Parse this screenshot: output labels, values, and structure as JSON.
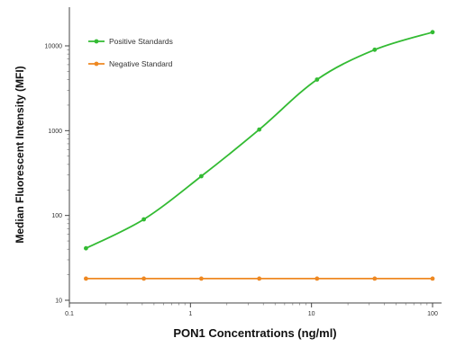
{
  "chart_data": {
    "type": "line",
    "title": "",
    "xlabel": "PON1 Concentrations (ng/ml)",
    "ylabel": "Median Fluorescent Intensity  (MFI)",
    "x_scale": "log",
    "y_scale": "log",
    "xlim": [
      0.1,
      100
    ],
    "ylim": [
      10,
      10000
    ],
    "x_ticks": [
      0.1,
      1,
      10,
      100
    ],
    "x_tick_labels": [
      "0.1",
      "1",
      "10",
      "100"
    ],
    "y_ticks": [
      10,
      100,
      1000,
      10000
    ],
    "y_tick_labels": [
      "10",
      "100",
      "1000",
      "10000"
    ],
    "grid": false,
    "legend_position": "top-left",
    "series": [
      {
        "name": "Positive Standards",
        "color": "#33bb33",
        "marker": "circle",
        "fit": "smooth-sigmoid",
        "x": [
          0.137,
          0.412,
          1.23,
          3.7,
          11.1,
          33.3,
          100
        ],
        "y": [
          41,
          90,
          290,
          1030,
          4000,
          9000,
          14500
        ]
      },
      {
        "name": "Negative Standard",
        "color": "#ee8822",
        "marker": "circle",
        "fit": "line",
        "x": [
          0.137,
          0.412,
          1.23,
          3.7,
          11.1,
          33.3,
          100
        ],
        "y": [
          18,
          18,
          18,
          18,
          18,
          18,
          18
        ]
      }
    ]
  }
}
